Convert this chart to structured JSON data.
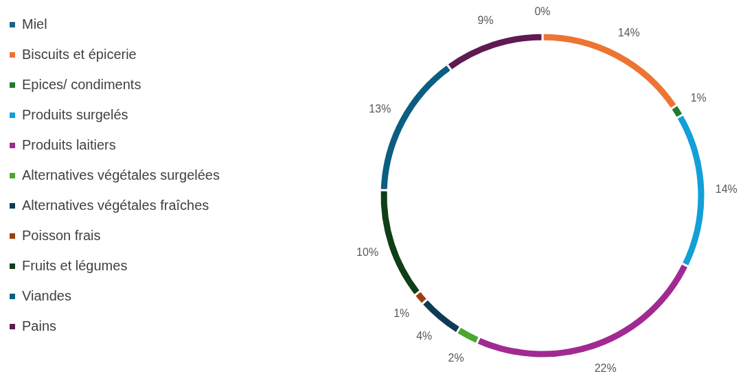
{
  "chart_data": {
    "type": "donut",
    "categories": [
      "Miel",
      "Biscuits et épicerie",
      "Epices/ condiments",
      "Produits surgelés",
      "Produits laitiers",
      "Alternatives végétales  surgelées",
      "Alternatives végétales fraîches",
      "Poisson frais",
      "Fruits et légumes",
      "Viandes",
      "Pains"
    ],
    "values": [
      0,
      14,
      1,
      14,
      22,
      2,
      4,
      1,
      10,
      13,
      9
    ],
    "value_labels": [
      "0%",
      "14%",
      "1%",
      "14%",
      "22%",
      "2%",
      "4%",
      "1%",
      "10%",
      "13%",
      "9%"
    ],
    "colors": [
      "#1f5f8b",
      "#ed7432",
      "#237a2f",
      "#139fd8",
      "#a02a92",
      "#4ba72f",
      "#0e3b53",
      "#9c3f0e",
      "#0f3e17",
      "#0b5e81",
      "#5f1a53"
    ],
    "legend": "left"
  }
}
